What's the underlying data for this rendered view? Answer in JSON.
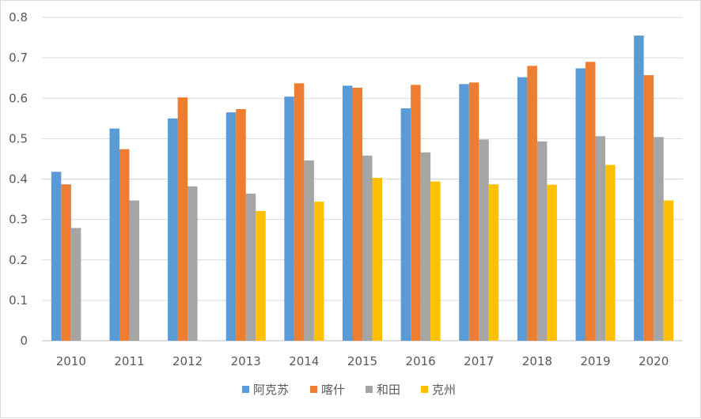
{
  "chart_data": {
    "type": "bar",
    "title": "",
    "xlabel": "",
    "ylabel": "",
    "categories": [
      "2010",
      "2011",
      "2012",
      "2013",
      "2014",
      "2015",
      "2016",
      "2017",
      "2018",
      "2019",
      "2020"
    ],
    "ylim": [
      0,
      0.8
    ],
    "yticks": [
      "0",
      "0.1",
      "0.2",
      "0.3",
      "0.4",
      "0.5",
      "0.6",
      "0.7",
      "0.8"
    ],
    "ytick_values": [
      0,
      0.1,
      0.2,
      0.3,
      0.4,
      0.5,
      0.6,
      0.7,
      0.8
    ],
    "grid": true,
    "legend_position": "bottom",
    "series": [
      {
        "name": "阿克苏",
        "color": "#5b9bd5",
        "values": [
          0.418,
          0.525,
          0.55,
          0.565,
          0.604,
          0.631,
          0.575,
          0.635,
          0.652,
          0.674,
          0.755
        ]
      },
      {
        "name": "喀什",
        "color": "#ed7d31",
        "values": [
          0.387,
          0.474,
          0.602,
          0.573,
          0.637,
          0.626,
          0.633,
          0.639,
          0.68,
          0.69,
          0.657
        ]
      },
      {
        "name": "和田",
        "color": "#a5a5a5",
        "values": [
          0.279,
          0.347,
          0.382,
          0.364,
          0.446,
          0.458,
          0.466,
          0.498,
          0.493,
          0.506,
          0.504
        ]
      },
      {
        "name": "克州",
        "color": "#ffc000",
        "values": [
          null,
          null,
          null,
          0.321,
          0.344,
          0.403,
          0.394,
          0.387,
          0.386,
          0.435,
          0.347
        ]
      }
    ]
  }
}
